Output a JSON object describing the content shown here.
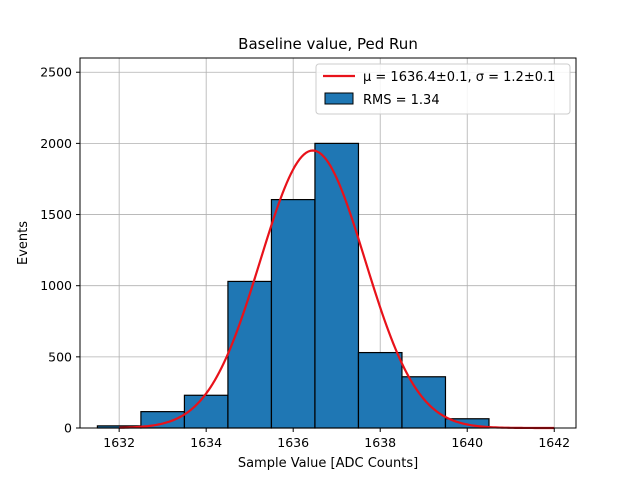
{
  "chart_data": {
    "type": "bar",
    "title": "Baseline value, Ped Run",
    "xlabel": "Sample Value [ADC Counts]",
    "ylabel": "Events",
    "xlim": [
      1631.1,
      1642.5
    ],
    "ylim": [
      0,
      2600
    ],
    "xticks": [
      1632,
      1634,
      1636,
      1638,
      1640,
      1642
    ],
    "yticks": [
      0,
      500,
      1000,
      1500,
      2000,
      2500
    ],
    "grid": true,
    "legend_position": "top-right",
    "bins": [
      {
        "x0": 1631.5,
        "x1": 1632.5,
        "count": 15
      },
      {
        "x0": 1632.5,
        "x1": 1633.5,
        "count": 115
      },
      {
        "x0": 1633.5,
        "x1": 1634.5,
        "count": 230
      },
      {
        "x0": 1634.5,
        "x1": 1635.5,
        "count": 1030
      },
      {
        "x0": 1635.5,
        "x1": 1636.5,
        "count": 1605
      },
      {
        "x0": 1636.5,
        "x1": 1637.5,
        "count": 2000
      },
      {
        "x0": 1637.5,
        "x1": 1638.5,
        "count": 530
      },
      {
        "x0": 1638.5,
        "x1": 1639.5,
        "count": 360
      },
      {
        "x0": 1639.5,
        "x1": 1640.5,
        "count": 65
      },
      {
        "x0": 1640.5,
        "x1": 1641.5,
        "count": 0
      }
    ],
    "fit": {
      "type": "gaussian",
      "mu": 1636.45,
      "sigma": 1.2,
      "amplitude": 1950,
      "x_range": [
        1632,
        1642
      ]
    },
    "series": [
      {
        "name": "μ = 1636.4±0.1, σ = 1.2±0.1",
        "kind": "line",
        "color": "#e8121a"
      },
      {
        "name": "RMS = 1.34",
        "kind": "bar",
        "color": "#1f77b4"
      }
    ]
  }
}
